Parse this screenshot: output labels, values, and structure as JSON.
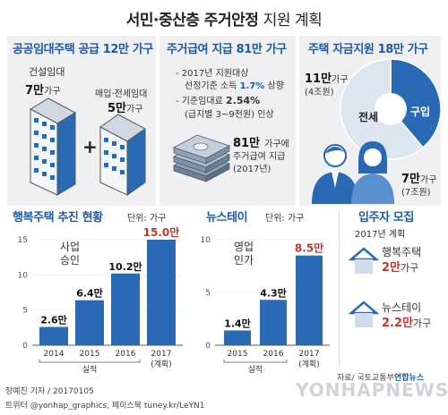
{
  "header": {
    "title_bold": "서민·중산층 주거안정",
    "title_light": "지원 계획"
  },
  "public_rental": {
    "heading": "공공임대주택 공급 12만 가구",
    "item1_label": "건설임대",
    "item1_value": "7만",
    "item1_unit": "가구",
    "item2_label": "매입·전세임대",
    "item2_value": "5만",
    "item2_unit": "가구",
    "plus": "+"
  },
  "housing_benefit": {
    "heading": "주거급여 지급 81만 가구",
    "bullet1_line1": "- 2017년 지원대상",
    "bullet1_line2": "선정기준 소득",
    "bullet1_pct": "1.7%",
    "bullet1_tail": "상향",
    "bullet2_line1": "- 기준임대료",
    "bullet2_pct": "2.54%",
    "bullet2_line2": "(급지별 3~9천원) 인상",
    "total_value": "81만",
    "total_line1_tail": "가구에",
    "total_line2": "주거급여 지급",
    "total_line3": "(2017년)"
  },
  "housing_fund": {
    "heading": "주택 자금지원 18만 가구",
    "jeonse_label": "전세",
    "jeonse_value": "11만",
    "jeonse_unit": "가구",
    "jeonse_amount": "(4조원)",
    "purchase_label": "구입",
    "purchase_value": "7만",
    "purchase_unit": "가구",
    "purchase_amount": "(7조원)",
    "pie": [
      {
        "name": "전세",
        "value": 11,
        "color": "#dce6f1"
      },
      {
        "name": "구입",
        "value": 7,
        "color": "#2a6ab5"
      }
    ]
  },
  "happy_housing": {
    "heading": "행복주택 추진 현황",
    "unit_note": "단위: 가구",
    "annotation": "사업\n승인",
    "actual_label": "실적",
    "plan_label": "(계획)",
    "yticks": [
      "0",
      "5",
      "10",
      "15"
    ],
    "unit_suffix": "만"
  },
  "new_stay": {
    "heading": "뉴스테이",
    "unit_note": "단위: 가구",
    "annotation": "영업\n인가",
    "actual_label": "실적",
    "plan_label": "(계획)",
    "yticks": [
      "0",
      "5",
      "10"
    ],
    "unit_suffix": "만"
  },
  "recruit": {
    "heading": "입주자 모집",
    "sub": "2017년 계획",
    "item1_label": "행복주택",
    "item1_value": "2만",
    "item1_unit": "가구",
    "item2_label": "뉴스테이",
    "item2_value": "2.2만",
    "item2_unit": "가구"
  },
  "footer": {
    "source": "자료/ 국토교통부",
    "logo": "연합뉴스",
    "credit": "장예진 기자 / 20170105",
    "sns": "트위터 @yonhap_graphics, 페이스북 tuney.kr/LeYN1",
    "watermark": "YONHAPNEWS"
  },
  "colors": {
    "accent": "#1e5aa8",
    "bar": "#2a6ab5",
    "highlight": "#c0392b",
    "panel": "#eef0f2"
  },
  "chart_data": [
    {
      "type": "bar",
      "title": "행복주택 추진 현황",
      "categories": [
        "2014",
        "2015",
        "2016",
        "2017"
      ],
      "values": [
        2.6,
        6.4,
        10.2,
        15.0
      ],
      "labels": [
        "2.6만",
        "6.4만",
        "10.2만",
        "15.0만"
      ],
      "ylabel": "단위: 가구",
      "ylim": [
        0,
        15
      ],
      "yticks": [
        0,
        5,
        10,
        15
      ]
    },
    {
      "type": "bar",
      "title": "뉴스테이",
      "categories": [
        "2015",
        "2016",
        "2017"
      ],
      "values": [
        1.4,
        4.3,
        8.5
      ],
      "labels": [
        "1.4만",
        "4.3만",
        "8.5만"
      ],
      "ylabel": "단위: 가구",
      "ylim": [
        0,
        10
      ],
      "yticks": [
        0,
        5,
        10
      ]
    }
  ]
}
